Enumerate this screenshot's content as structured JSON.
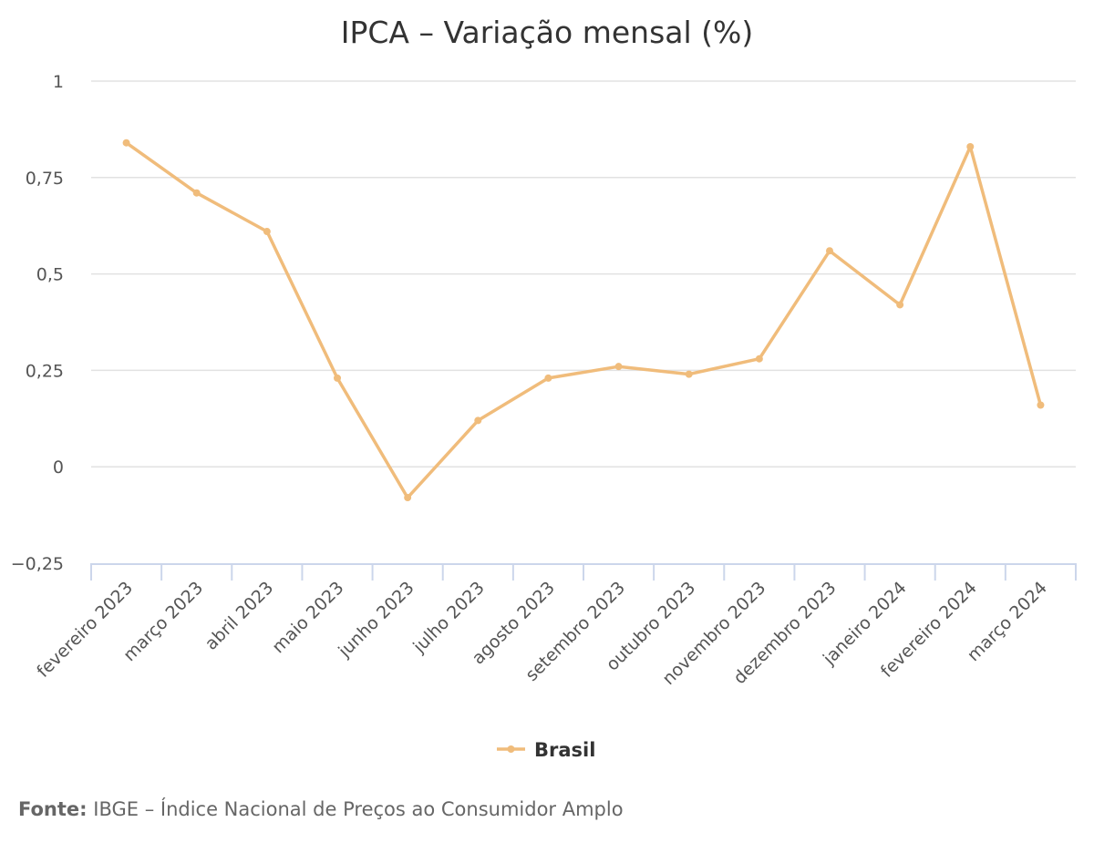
{
  "source": {
    "label": "Fonte:",
    "text": "IBGE – Índice Nacional de Preços ao Consumidor Amplo"
  },
  "colors": {
    "series": "#f0bc7b",
    "grid": "#e2e2e2",
    "axis": "#ccd6eb",
    "text": "#555555"
  },
  "chart_data": {
    "type": "line",
    "title": "IPCA – Variação mensal (%)",
    "xlabel": "",
    "ylabel": "",
    "categories": [
      "fevereiro 2023",
      "março 2023",
      "abril 2023",
      "maio 2023",
      "junho 2023",
      "julho 2023",
      "agosto 2023",
      "setembro 2023",
      "outubro 2023",
      "novembro 2023",
      "dezembro 2023",
      "janeiro 2024",
      "fevereiro 2024",
      "março 2024"
    ],
    "series": [
      {
        "name": "Brasil",
        "values": [
          0.84,
          0.71,
          0.61,
          0.23,
          -0.08,
          0.12,
          0.23,
          0.26,
          0.24,
          0.28,
          0.56,
          0.42,
          0.83,
          0.16
        ]
      }
    ],
    "ylim": [
      -0.25,
      1
    ],
    "yticks": [
      1,
      0.75,
      0.5,
      0.25,
      0,
      -0.25
    ],
    "ytick_labels": [
      "1",
      "0,75",
      "0,5",
      "0,25",
      "0",
      "−0,25"
    ],
    "grid": true,
    "legend": "bottom-center"
  }
}
